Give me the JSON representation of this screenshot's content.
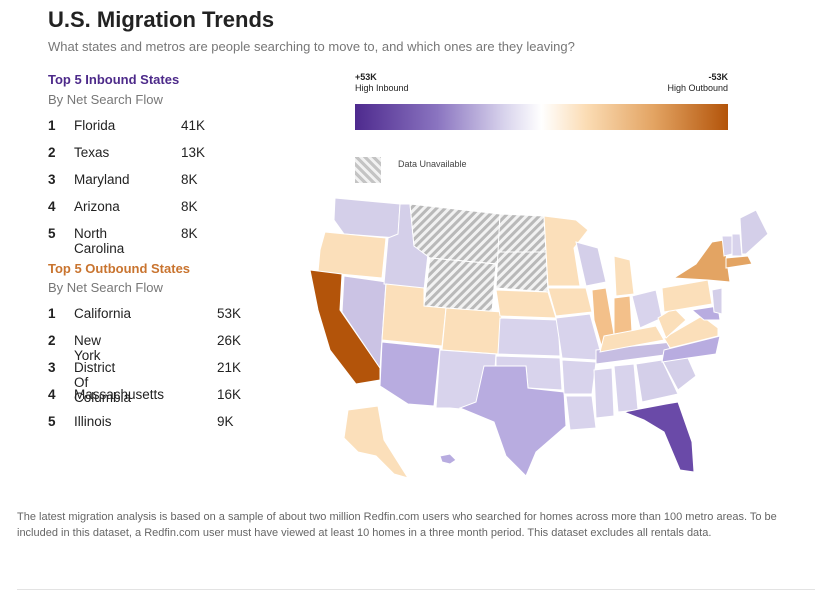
{
  "header": {
    "title": "U.S. Migration Trends",
    "subtitle": "What states and metros are people searching to move to, and which ones are they leaving?"
  },
  "inbound": {
    "title": "Top 5 Inbound States",
    "subtitle": "By Net Search Flow",
    "items": [
      {
        "rank": "1",
        "name": "Florida",
        "value": "41K"
      },
      {
        "rank": "2",
        "name": "Texas",
        "value": "13K"
      },
      {
        "rank": "3",
        "name": "Maryland",
        "value": "8K"
      },
      {
        "rank": "4",
        "name": "Arizona",
        "value": "8K"
      },
      {
        "rank": "5",
        "name": "North Carolina",
        "value": "8K"
      }
    ]
  },
  "outbound": {
    "title": "Top 5 Outbound States",
    "subtitle": "By Net Search Flow",
    "items": [
      {
        "rank": "1",
        "name": "California",
        "value": "53K"
      },
      {
        "rank": "2",
        "name": "New York",
        "value": "26K"
      },
      {
        "rank": "3",
        "name": "District Of Columbia",
        "value": "21K"
      },
      {
        "rank": "4",
        "name": "Massachusetts",
        "value": "16K"
      },
      {
        "rank": "5",
        "name": "Illinois",
        "value": "9K"
      }
    ]
  },
  "legend": {
    "high_inbound_value": "+53K",
    "high_inbound_label": "High Inbound",
    "high_outbound_value": "-53K",
    "high_outbound_label": "High Outbound",
    "unavailable_label": "Data Unavailable",
    "colors": {
      "inbound_strong": "#4e2a8e",
      "neutral": "#ffffff",
      "outbound_strong": "#b3540a"
    }
  },
  "footnote": "The latest migration analysis is based on a sample of about two million Redfin.com users who searched for homes across more than 100 metro areas. To be included in this dataset, a Redfin.com user must have viewed at least 10 homes in a three month period. This dataset excludes all rentals data."
}
